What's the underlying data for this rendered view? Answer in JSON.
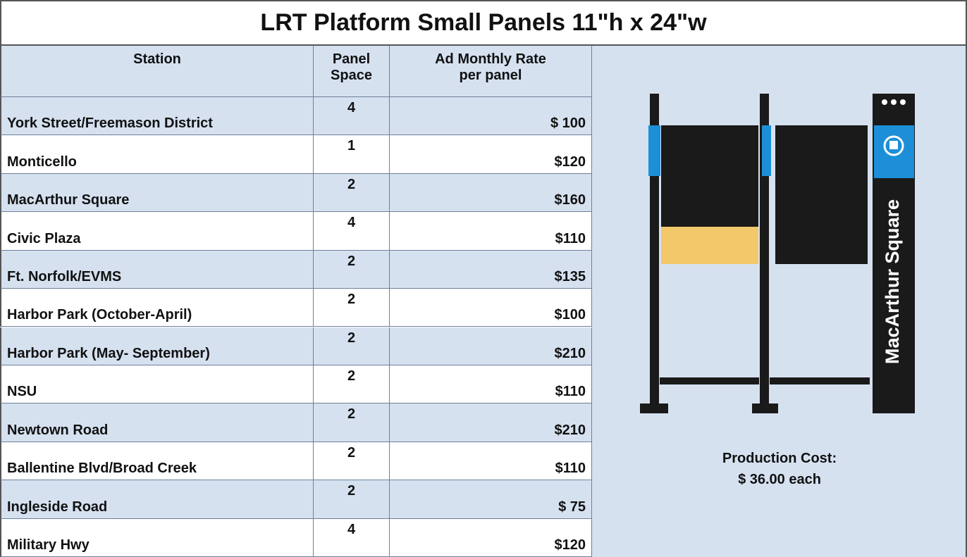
{
  "title": "LRT Platform Small Panels 11\"h  x  24\"w",
  "table": {
    "headers": [
      "Station",
      "Panel Space",
      "Ad Monthly Rate per panel"
    ],
    "rows": [
      [
        "York Street/Freemason District",
        4,
        "$ 100"
      ],
      [
        "Monticello",
        1,
        "$120"
      ],
      [
        "MacArthur Square",
        2,
        "$160"
      ],
      [
        "Civic Plaza",
        4,
        "$110"
      ],
      [
        "Ft. Norfolk/EVMS",
        2,
        "$135"
      ],
      [
        "Harbor Park (October-April)",
        2,
        "$100"
      ],
      [
        "Harbor Park (May- September)",
        2,
        "$210"
      ],
      [
        "NSU",
        2,
        "$110"
      ],
      [
        "Newtown Road",
        2,
        "$210"
      ],
      [
        "Ballentine Blvd/Broad Creek",
        2,
        "$110"
      ],
      [
        "Ingleside Road",
        2,
        "$ 75"
      ],
      [
        "Military Hwy",
        4,
        "$120"
      ]
    ]
  },
  "illustration": {
    "sign_label": "MacArthur Square"
  },
  "production_cost": {
    "label": "Production Cost:",
    "value": "$ 36.00 each"
  }
}
